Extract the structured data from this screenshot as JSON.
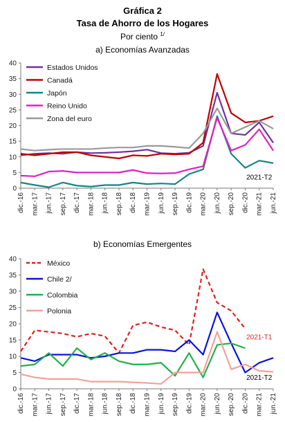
{
  "header": {
    "title": "Gráfica 2",
    "subtitle": "Tasa de Ahorro de los Hogares",
    "units": "Por ciento",
    "units_note": "1/"
  },
  "chart_data": [
    {
      "type": "line",
      "title": "a) Economías Avanzadas",
      "ylim": [
        0,
        40
      ],
      "yticks": [
        0,
        5,
        10,
        15,
        20,
        25,
        30,
        35,
        40
      ],
      "x": [
        "dic.-16",
        "mar.-17",
        "jun.-17",
        "sep.-17",
        "dic.-17",
        "mar.-18",
        "jun.-18",
        "sep.-18",
        "dic.-18",
        "mar.-19",
        "jun.-19",
        "sep.-19",
        "dic.-19",
        "mar.-20",
        "jun.-20",
        "sep.-20",
        "dic.-20",
        "mar.-21",
        "jun.-21"
      ],
      "xtick_labels": [
        "dic.-16",
        "mar.-17",
        "jun.-17",
        "sep.-17",
        "dic.-17",
        "mar.-18",
        "jun.-18",
        "sep.-18",
        "dic.-18",
        "mar.-19",
        "jun.-19",
        "sep.-19",
        "dic.-19",
        "mar.-20",
        "jun.-20",
        "sep.-20",
        "dic.-20",
        "mar.-21",
        "jun.-21"
      ],
      "legend_position": "top-left",
      "series": [
        {
          "name": "Estados Unidos",
          "color": "#7030a0",
          "dash": "solid",
          "values": [
            10.5,
            11.0,
            11.2,
            11.0,
            11.5,
            11.2,
            11.3,
            11.5,
            11.8,
            12.3,
            11.2,
            11.0,
            11.3,
            13.5,
            30.5,
            17.5,
            17.0,
            21.0,
            14.5
          ]
        },
        {
          "name": "Canadá",
          "color": "#c00000",
          "dash": "solid",
          "values": [
            11.0,
            10.5,
            11.0,
            11.5,
            11.5,
            10.5,
            10.0,
            9.5,
            10.5,
            10.3,
            11.0,
            10.8,
            11.0,
            14.5,
            36.5,
            24.0,
            21.0,
            21.5,
            23.0
          ]
        },
        {
          "name": "Japón",
          "color": "#138585",
          "dash": "solid",
          "values": [
            1.8,
            1.0,
            0.3,
            1.8,
            0.8,
            0.5,
            1.0,
            1.0,
            1.8,
            1.3,
            1.5,
            1.3,
            4.5,
            6.0,
            23.0,
            11.0,
            6.5,
            8.8,
            8.0
          ]
        },
        {
          "name": "Reino Unido",
          "color": "#e020c0",
          "dash": "solid",
          "values": [
            4.0,
            3.8,
            5.3,
            5.5,
            5.0,
            5.0,
            5.0,
            5.0,
            5.8,
            4.8,
            4.7,
            4.8,
            6.0,
            7.0,
            22.5,
            12.0,
            13.8,
            18.8,
            12.0
          ]
        },
        {
          "name": "Zona del euro",
          "color": "#999999",
          "dash": "solid",
          "values": [
            12.5,
            12.0,
            12.3,
            12.5,
            12.5,
            12.5,
            12.8,
            13.0,
            13.0,
            13.5,
            13.5,
            13.2,
            12.8,
            17.5,
            25.5,
            17.5,
            19.5,
            21.5,
            19.0
          ]
        }
      ],
      "annotations": [
        {
          "text": "2021-T2",
          "x": "mar.-21",
          "y": 3.5,
          "color": "#000000"
        }
      ]
    },
    {
      "type": "line",
      "title": "b) Economías Emergentes",
      "ylim": [
        0,
        40
      ],
      "yticks": [
        0,
        5,
        10,
        15,
        20,
        25,
        30,
        35,
        40
      ],
      "x": [
        "dic.-16",
        "mar.-17",
        "jun.-17",
        "sep.-17",
        "dic.-17",
        "mar.-18",
        "jun.-18",
        "sep.-18",
        "dic.-18",
        "mar.-19",
        "jun.-19",
        "sep.-19",
        "dic.-19",
        "mar.-20",
        "jun.-20",
        "sep.-20",
        "dic.-20",
        "mar.-21",
        "jun.-21"
      ],
      "xtick_labels": [
        "dic.-16",
        "mar.-17",
        "jun.-17",
        "sep.-17",
        "dic.-17",
        "mar.-18",
        "jun.-18",
        "sep.-18",
        "dic.-18",
        "mar.-19",
        "jun.-19",
        "sep.-19",
        "dic.-19",
        "mar.-20",
        "jun.-20",
        "sep.-20",
        "dic.-20",
        "mar.-21",
        "jun.-21"
      ],
      "legend_position": "top-left",
      "series": [
        {
          "name": "México",
          "color": "#e02020",
          "dash": "dashed",
          "values": [
            11.5,
            18.0,
            17.5,
            17.0,
            16.0,
            17.0,
            16.2,
            11.0,
            19.5,
            20.5,
            19.0,
            18.0,
            13.5,
            36.8,
            26.5,
            24.0,
            18.5,
            null,
            null
          ]
        },
        {
          "name": "Chile 2/",
          "color": "#0a12d8",
          "dash": "solid",
          "values": [
            9.5,
            8.5,
            10.5,
            10.5,
            10.5,
            9.5,
            10.0,
            11.0,
            11.0,
            12.0,
            12.0,
            11.5,
            15.0,
            10.5,
            23.5,
            14.0,
            5.0,
            8.0,
            9.5
          ]
        },
        {
          "name": "Colombia",
          "color": "#22b04a",
          "dash": "solid",
          "values": [
            7.0,
            7.5,
            11.0,
            7.0,
            12.5,
            9.0,
            11.0,
            8.5,
            7.5,
            7.5,
            8.0,
            4.0,
            11.0,
            3.5,
            13.5,
            14.0,
            12.5,
            null,
            null
          ]
        },
        {
          "name": "Polonia",
          "color": "#f4a09a",
          "dash": "solid",
          "values": [
            4.5,
            3.5,
            3.0,
            3.0,
            3.0,
            2.2,
            2.2,
            2.2,
            2.0,
            1.8,
            1.5,
            5.0,
            5.0,
            5.0,
            17.5,
            6.0,
            7.5,
            5.5,
            5.2
          ]
        }
      ],
      "annotations": [
        {
          "text": "2021-T1",
          "x": "mar.-21",
          "y": 16.0,
          "color": "#e02020"
        },
        {
          "text": "2021-T2",
          "x": "mar.-21",
          "y": 3.5,
          "color": "#000000"
        }
      ]
    }
  ]
}
